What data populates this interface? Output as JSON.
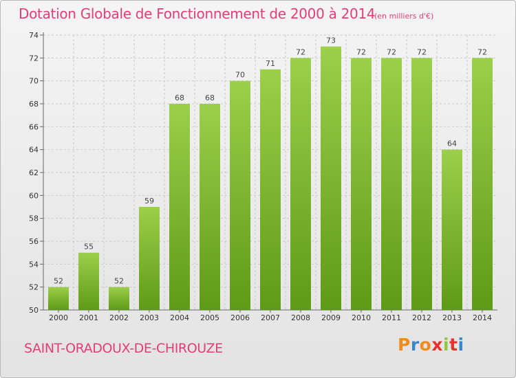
{
  "header": {
    "title": "Dotation Globale de Fonctionnement de 2000 à 2014",
    "unit": "(en milliers d'€)"
  },
  "footer": {
    "commune": "SAINT-ORADOUX-DE-CHIROUZE",
    "logo_letters": [
      "P",
      "r",
      "o",
      "x",
      "i",
      "t",
      "i"
    ],
    "logo_colors": [
      "#f08a1e",
      "#3a86c8",
      "#f08a1e",
      "#e8322e",
      "#8dc63f",
      "#e8322e",
      "#3a86c8"
    ]
  },
  "chart_data": {
    "type": "bar",
    "title": "Dotation Globale de Fonctionnement de 2000 à 2014",
    "xlabel": "",
    "ylabel": "",
    "categories": [
      "2000",
      "2001",
      "2002",
      "2003",
      "2004",
      "2005",
      "2006",
      "2007",
      "2008",
      "2009",
      "2010",
      "2011",
      "2012",
      "2013",
      "2014"
    ],
    "values": [
      52,
      55,
      52,
      59,
      68,
      68,
      70,
      71,
      72,
      73,
      72,
      72,
      72,
      64,
      72
    ],
    "ylim": [
      50,
      74
    ],
    "yticks": [
      50,
      52,
      54,
      56,
      58,
      60,
      62,
      64,
      66,
      68,
      70,
      72,
      74
    ],
    "grid": true,
    "bar_color_top": "#9ccf4a",
    "bar_color_bottom": "#5f9a16"
  }
}
